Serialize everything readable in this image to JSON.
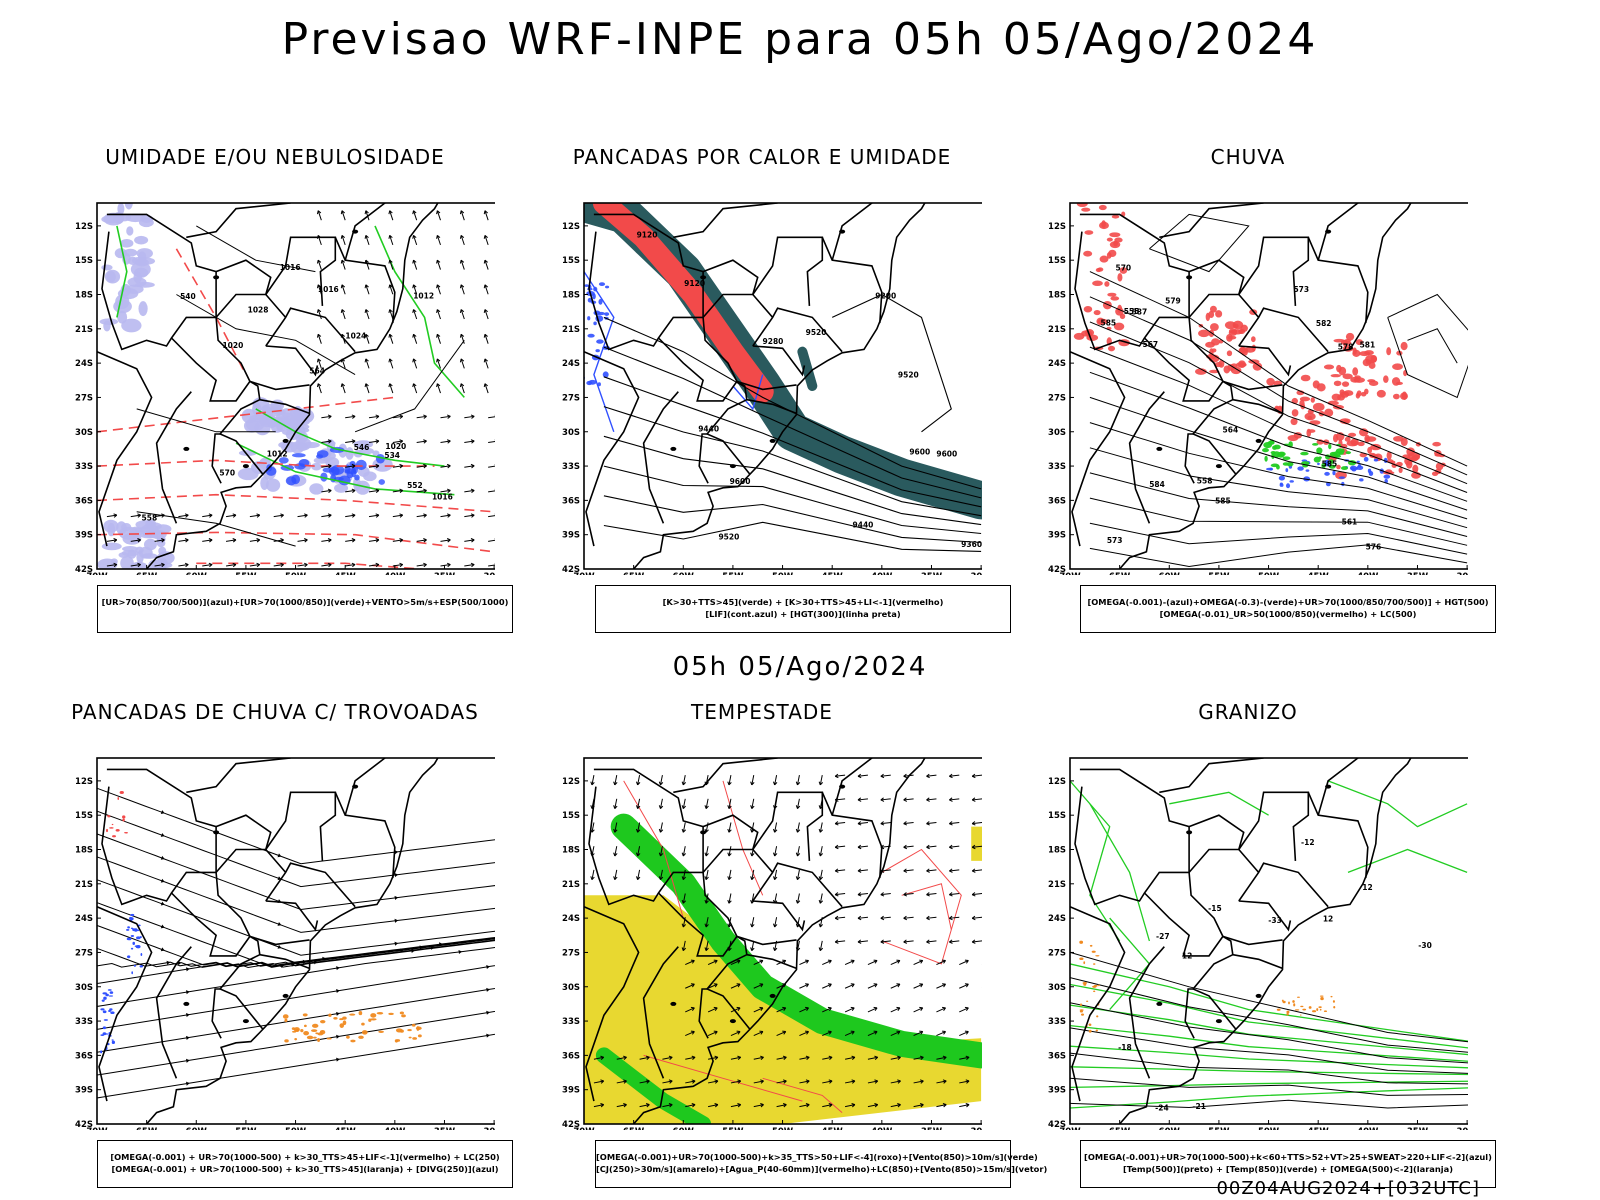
{
  "header": {
    "main_title": "Previsao WRF-INPE  para 05h 05/Ago/2024",
    "mid_title": "05h 05/Ago/2024",
    "run_tag": "00Z04AUG2024+[032UTC]"
  },
  "axes": {
    "lat_labels": [
      "12S",
      "15S",
      "18S",
      "21S",
      "24S",
      "27S",
      "30S",
      "33S",
      "36S",
      "39S",
      "42S"
    ],
    "lon_labels": [
      "70W",
      "65W",
      "60W",
      "55W",
      "50W",
      "45W",
      "40W",
      "35W",
      "30W"
    ]
  },
  "panels": [
    {
      "id": "p1",
      "title": "UMIDADE E/OU NEBULOSIDADE",
      "caption": [
        "[UR>70(850/700/500)](azul)+[UR>70(1000/850)](verde)+VENTO>5m/s+ESP(500/1000)"
      ],
      "contour_labels": [
        "1012",
        "1016",
        "1016",
        "1020",
        "1020",
        "1024",
        "1028",
        "570",
        "564",
        "558",
        "552",
        "546",
        "540",
        "534",
        "1016",
        "1012"
      ]
    },
    {
      "id": "p2",
      "title": "PANCADAS POR CALOR E UMIDADE",
      "caption": [
        "[K>30+TTS>45](verde) + [K>30+TTS>45+LI<-1](vermelho)",
        "[LIF](cont.azul) + [HGT(300)](linha preta)"
      ],
      "contour_labels": [
        "9600",
        "9600",
        "9600",
        "9520",
        "9520",
        "9520",
        "9440",
        "9440",
        "9360",
        "9280",
        "9200",
        "9120",
        "9120"
      ]
    },
    {
      "id": "p3",
      "title": "CHUVA",
      "caption": [
        "[OMEGA(-0.001)-(azul)+OMEGA(-0.3)-(verde)+UR>70(1000/850/700/500)] + HGT(500)",
        "[OMEGA(-0.01)_UR>50(1000/850)(vermelho) + LC(500)"
      ],
      "contour_labels": [
        "585",
        "585",
        "585",
        "582",
        "579",
        "576",
        "573",
        "570",
        "567",
        "564",
        "561",
        "558",
        "555",
        "587",
        "584",
        "581",
        "578",
        "573"
      ]
    },
    {
      "id": "p4",
      "title": "PANCADAS DE CHUVA C/ TROVOADAS",
      "caption": [
        "[OMEGA(-0.001) + UR>70(1000-500) + k>30_TTS>45+LIF<-1](vermelho) + LC(250)",
        "[OMEGA(-0.001) + UR>70(1000-500) + k>30_TTS>45](laranja) + [DIVG(250)](azul)"
      ],
      "contour_labels": []
    },
    {
      "id": "p5",
      "title": "TEMPESTADE",
      "caption": [
        "[OMEGA(-0.001)+UR>70(1000-500)+k>35_TTS>50+LIF<-4](roxo)+[Vento(850)>10m/s](verde)",
        "[CJ(250)>30m/s](amarelo)+[Agua_P(40-60mm)](vermelho)+LC(850)+[Vento(850)>15m/s](vetor)"
      ],
      "contour_labels": []
    },
    {
      "id": "p6",
      "title": "GRANIZO",
      "caption": [
        "[OMEGA(-0.001)+UR>70(1000-500)+k<60+TTS>52+VT>25+SWEAT>220+LIF<-2](azul)",
        "[Temp(500)](preto) + [Temp(850)](verde) + [OMEGA(500)<-2](laranja)"
      ],
      "contour_labels": [
        "12",
        "12",
        "12",
        "-12",
        "-15",
        "-18",
        "-21",
        "-24",
        "-27",
        "-30",
        "-33"
      ]
    }
  ],
  "colors": {
    "red": "#f24a4a",
    "green": "#22cc22",
    "blue": "#3050ff",
    "lavender": "#b8b8f0",
    "teal": "#2a5a5e",
    "orange": "#f08a20",
    "yellow": "#e8d830",
    "lime": "#1ec81e"
  }
}
